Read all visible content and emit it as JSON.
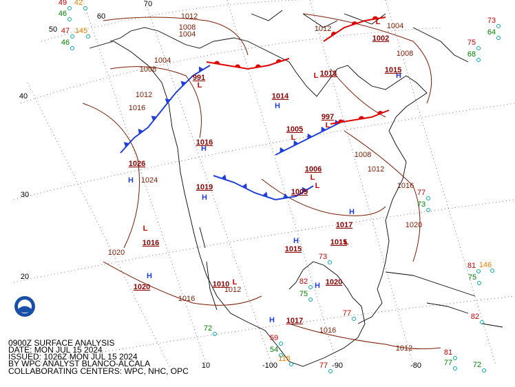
{
  "header": {
    "lines": [
      "0900Z SURFACE ANALYSIS",
      "DATE: MON JUL 15 2024",
      "ISSUED: 1026Z MON JUL 15 2024",
      "BY WPC ANALYST BLANCO-ALCALA",
      "COLLABORATING CENTERS: WPC, NHC, OPC"
    ]
  },
  "grid_labels": [
    "70",
    "60",
    "50",
    "40",
    "30",
    "20",
    "10",
    "-100",
    "-90",
    "-80"
  ],
  "centers": [
    {
      "kind": "H",
      "pressure": "1026"
    },
    {
      "kind": "L",
      "pressure": "1016"
    },
    {
      "kind": "H",
      "pressure": "1020"
    },
    {
      "kind": "L",
      "pressure": "1010"
    },
    {
      "kind": "H",
      "pressure": "1017"
    },
    {
      "kind": "H",
      "pressure": "1020"
    },
    {
      "kind": "L",
      "pressure": "1015"
    },
    {
      "kind": "H",
      "pressure": "1015"
    },
    {
      "kind": "L",
      "pressure": "1013"
    },
    {
      "kind": "L",
      "pressure": "1002"
    },
    {
      "kind": "L",
      "pressure": "1005"
    },
    {
      "kind": "H",
      "pressure": "1014"
    },
    {
      "kind": "H",
      "pressure": "1016"
    },
    {
      "kind": "H",
      "pressure": "1019"
    },
    {
      "kind": "L",
      "pressure": "1009"
    },
    {
      "kind": "H",
      "pressure": "1015"
    },
    {
      "kind": "H",
      "pressure": "1017"
    },
    {
      "kind": "L",
      "pressure": "997"
    },
    {
      "kind": "L",
      "pressure": "991"
    },
    {
      "kind": "L",
      "pressure": "1006"
    }
  ],
  "isobar_labels": [
    "1012",
    "1008",
    "1004",
    "1012",
    "1016",
    "1024",
    "1020",
    "1016",
    "1012",
    "1008",
    "1004",
    "1016",
    "1020",
    "1012",
    "1016",
    "1008",
    "1012",
    "1008",
    "1004",
    "1012"
  ],
  "stations": [
    {
      "text": "49",
      "color": "#c00000"
    },
    {
      "text": "42",
      "color": "#e08000"
    },
    {
      "text": "46",
      "color": "#008000"
    },
    {
      "text": "47",
      "color": "#c00000"
    },
    {
      "text": "145",
      "color": "#e08000"
    },
    {
      "text": "46",
      "color": "#008000"
    },
    {
      "text": "73",
      "color": "#c00000"
    },
    {
      "text": "64",
      "color": "#008000"
    },
    {
      "text": "75",
      "color": "#c00000"
    },
    {
      "text": "68",
      "color": "#008000"
    },
    {
      "text": "81",
      "color": "#c00000"
    },
    {
      "text": "146",
      "color": "#e08000"
    },
    {
      "text": "75",
      "color": "#008000"
    },
    {
      "text": "82",
      "color": "#c00000"
    },
    {
      "text": "81",
      "color": "#c00000"
    },
    {
      "text": "77",
      "color": "#008000"
    },
    {
      "text": "72",
      "color": "#008000"
    },
    {
      "text": "72",
      "color": "#008000"
    },
    {
      "text": "59",
      "color": "#c00000"
    },
    {
      "text": "54",
      "color": "#008000"
    },
    {
      "text": "116",
      "color": "#e08000"
    },
    {
      "text": "75",
      "color": "#008000"
    },
    {
      "text": "82",
      "color": "#c00000"
    },
    {
      "text": "73",
      "color": "#c00000"
    },
    {
      "text": "77",
      "color": "#c00000"
    },
    {
      "text": "73",
      "color": "#008000"
    },
    {
      "text": "77",
      "color": "#c00000"
    },
    {
      "text": "77",
      "color": "#c00000"
    }
  ]
}
